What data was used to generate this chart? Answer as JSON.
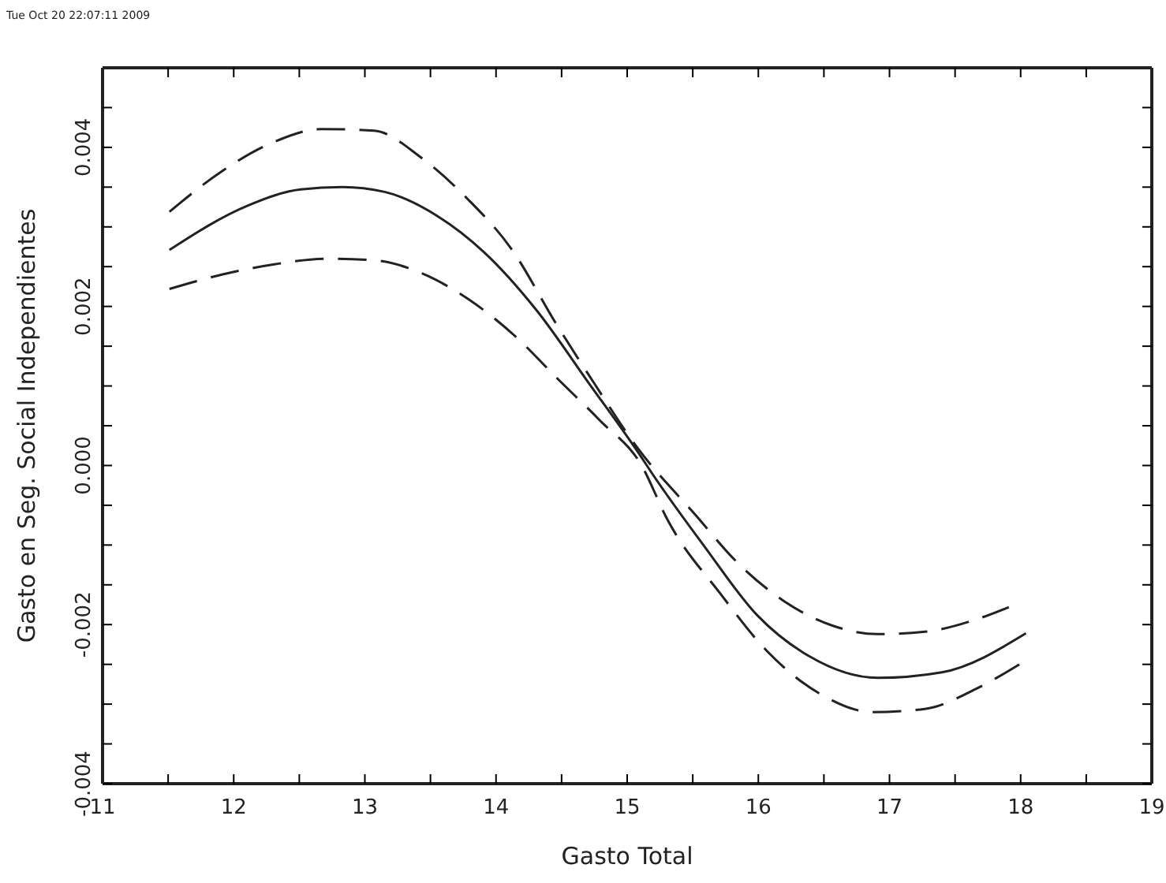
{
  "chart_data": {
    "type": "line",
    "xlabel": "Gasto Total",
    "ylabel": "Gasto en Seg. Social Independientes",
    "annotations": [
      "Tue Oct 20 22:07:11 2009"
    ],
    "xlim": [
      11,
      19
    ],
    "xticks": [
      11,
      {
        "value": 11.5,
        "label": null
      },
      12,
      {
        "value": 12.5,
        "label": null
      },
      13,
      {
        "value": 13.5,
        "label": null
      },
      14,
      {
        "value": 14.5,
        "label": null
      },
      15,
      {
        "value": 15.5,
        "label": null
      },
      16,
      {
        "value": 16.5,
        "label": null
      },
      17,
      {
        "value": 17.5,
        "label": null
      },
      18,
      {
        "value": 18.5,
        "label": null
      },
      19
    ],
    "ylim": [
      -0.004,
      0.005
    ],
    "yticks": [
      {
        "value": -0.004,
        "label": "-0.004"
      },
      {
        "value": -0.0035,
        "label": null
      },
      {
        "value": -0.003,
        "label": null
      },
      {
        "value": -0.0025,
        "label": null
      },
      {
        "value": -0.002,
        "label": "-0.002"
      },
      {
        "value": -0.0015,
        "label": null
      },
      {
        "value": -0.001,
        "label": null
      },
      {
        "value": -0.0005,
        "label": null
      },
      {
        "value": 0,
        "label": "0.000"
      },
      {
        "value": 0.0005,
        "label": null
      },
      {
        "value": 0.001,
        "label": null
      },
      {
        "value": 0.0015,
        "label": null
      },
      {
        "value": 0.002,
        "label": "0.002"
      },
      {
        "value": 0.0025,
        "label": null
      },
      {
        "value": 0.003,
        "label": null
      },
      {
        "value": 0.0035,
        "label": null
      },
      {
        "value": 0.004,
        "label": "0.004"
      },
      {
        "value": 0.0045,
        "label": null
      }
    ],
    "grid": false,
    "marker": "none",
    "series": [
      {
        "color": "#222222",
        "line_style": "solid",
        "x": [
          11.51,
          12.11,
          12.51,
          12.83,
          13.15,
          13.55,
          13.91,
          14.31,
          14.71,
          15.11,
          15.19,
          15.59,
          15.99,
          16.39,
          16.91,
          17.4,
          18.04
        ],
        "values": [
          0.00271,
          0.00327,
          0.00347,
          0.0035,
          0.00344,
          0.00314,
          0.00268,
          0.00195,
          0.00103,
          0.0001,
          -0.0001,
          -0.00102,
          -0.00188,
          -0.0024,
          -0.00267,
          -0.0026,
          -0.00211
        ]
      },
      {
        "color": "#222222",
        "line_style": "dashed",
        "x": [
          11.51,
          11.91,
          12.31,
          12.67,
          13.07,
          13.43,
          13.79,
          14.11,
          14.47,
          14.75,
          15.07,
          15.52,
          15.84,
          16.2,
          16.56,
          16.91,
          17.27,
          17.67,
          17.91
        ],
        "values": [
          0.00319,
          0.0037,
          0.00407,
          0.00423,
          0.00421,
          0.00387,
          0.00334,
          0.00274,
          0.00175,
          0.00103,
          0.00024,
          -0.00062,
          -0.00122,
          -0.00171,
          -0.00201,
          -0.00212,
          -0.00209,
          -0.00193,
          -0.00178
        ]
      },
      {
        "color": "#222222",
        "line_style": "dashed",
        "x": [
          11.51,
          11.91,
          12.31,
          12.71,
          13.07,
          13.43,
          13.79,
          14.15,
          14.47,
          14.79,
          15.11,
          15.31,
          15.71,
          16.07,
          16.47,
          16.87,
          17.27,
          17.67,
          17.99
        ],
        "values": [
          0.00222,
          0.0024,
          0.00253,
          0.0026,
          0.00258,
          0.00242,
          0.00209,
          0.00162,
          0.00109,
          0.00057,
          0,
          -0.00069,
          -0.00161,
          -0.00234,
          -0.00287,
          -0.0031,
          -0.00306,
          -0.0028,
          -0.0025
        ]
      }
    ]
  }
}
